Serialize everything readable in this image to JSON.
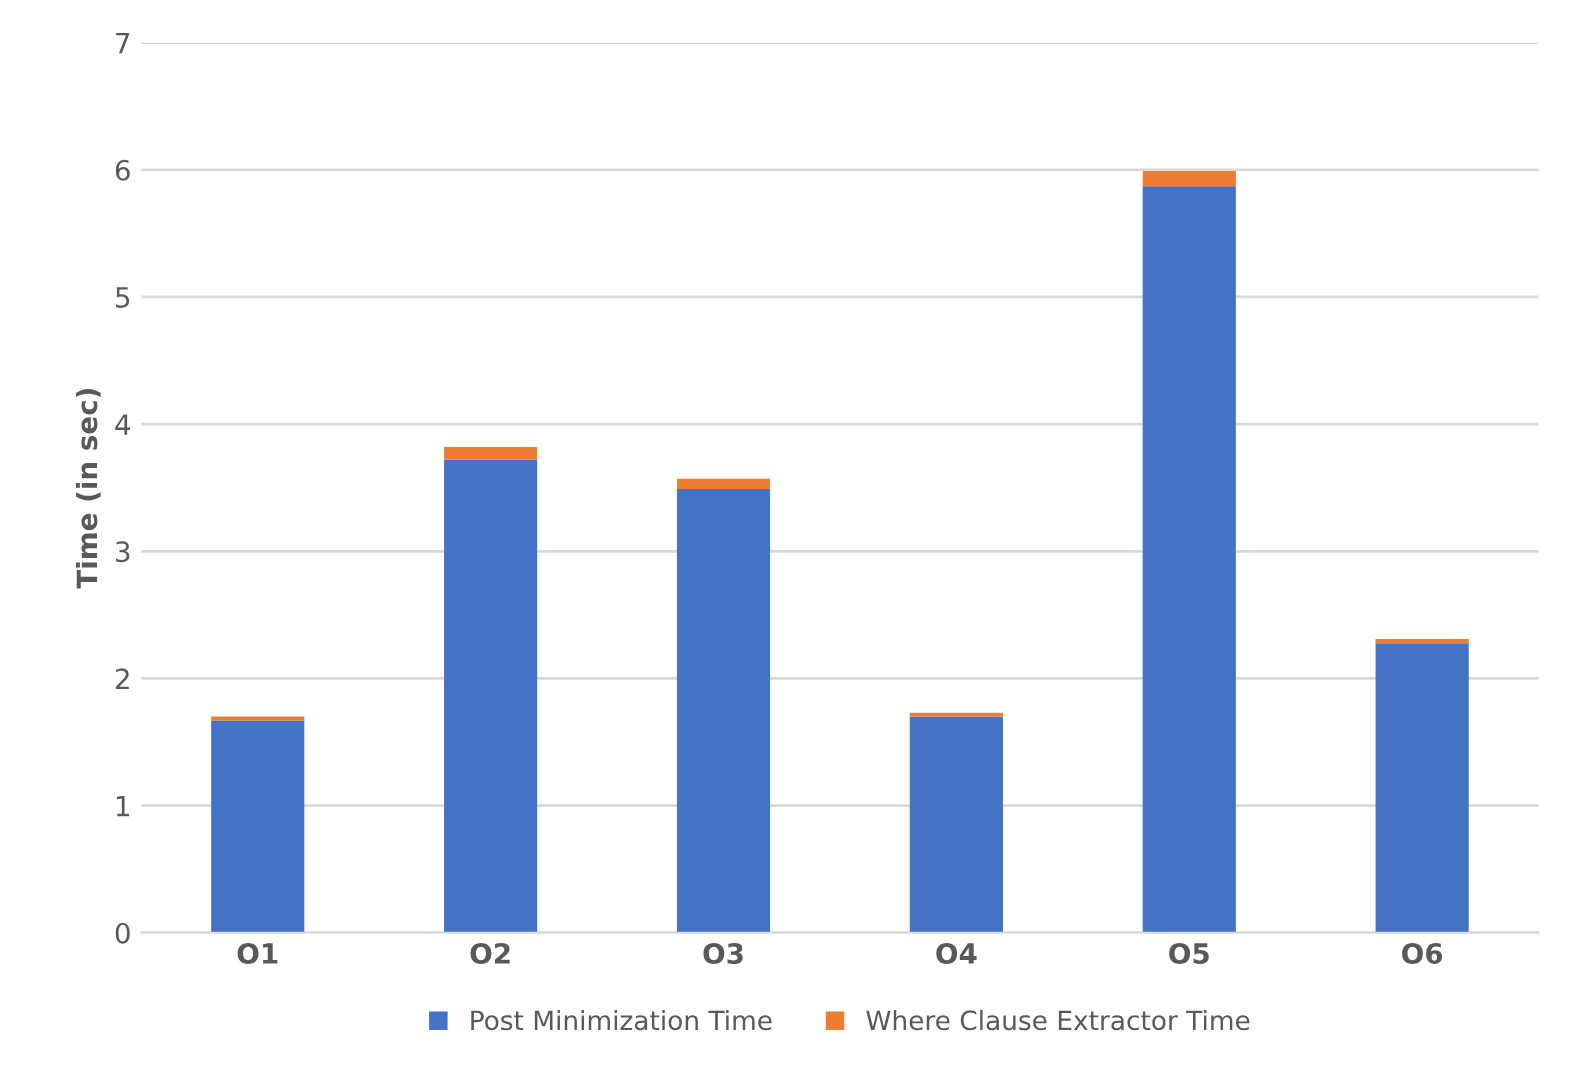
{
  "chart_data": {
    "type": "bar",
    "stacked": true,
    "ylabel": "Time (in sec)",
    "categories": [
      "O1",
      "O2",
      "O3",
      "O4",
      "O5",
      "O6"
    ],
    "series": [
      {
        "name": "Post Minimization Time",
        "color": "#4472c4",
        "values": [
          1.67,
          3.72,
          3.49,
          1.7,
          5.87,
          2.27
        ]
      },
      {
        "name": "Where Clause Extractor Time",
        "color": "#ed7d31",
        "values": [
          0.03,
          0.1,
          0.08,
          0.03,
          0.12,
          0.04
        ]
      }
    ],
    "ylim": [
      0,
      7
    ],
    "yticks": [
      0,
      1,
      2,
      3,
      4,
      5,
      6,
      7
    ],
    "grid": "y",
    "legend": "bottom"
  }
}
